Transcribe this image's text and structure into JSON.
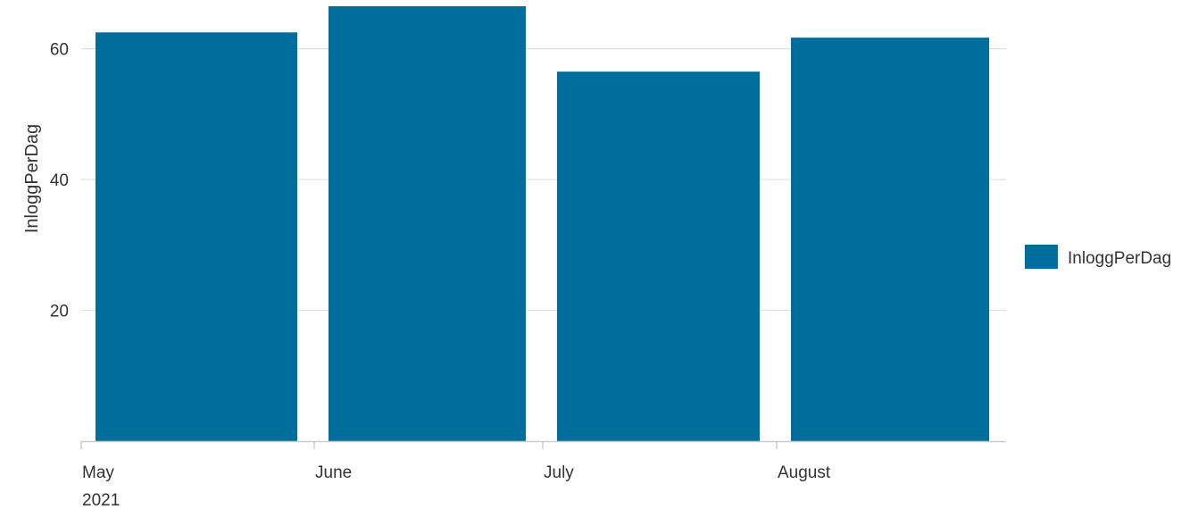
{
  "chart_data": {
    "type": "bar",
    "categories": [
      "May",
      "June",
      "July",
      "August"
    ],
    "year_label": "2021",
    "series": [
      {
        "name": "InloggPerDag",
        "values": [
          62.5,
          66.5,
          56.5,
          61.7
        ]
      }
    ],
    "ylabel": "InloggPerDag",
    "yticks": [
      20,
      40,
      60
    ],
    "ylim": [
      0,
      66.5
    ],
    "grid": true,
    "legend_position": "right",
    "colors": {
      "bar": "#006e9c",
      "grid": "#dde1e6",
      "axis": "#c5ccd6",
      "text": "#333333"
    }
  }
}
